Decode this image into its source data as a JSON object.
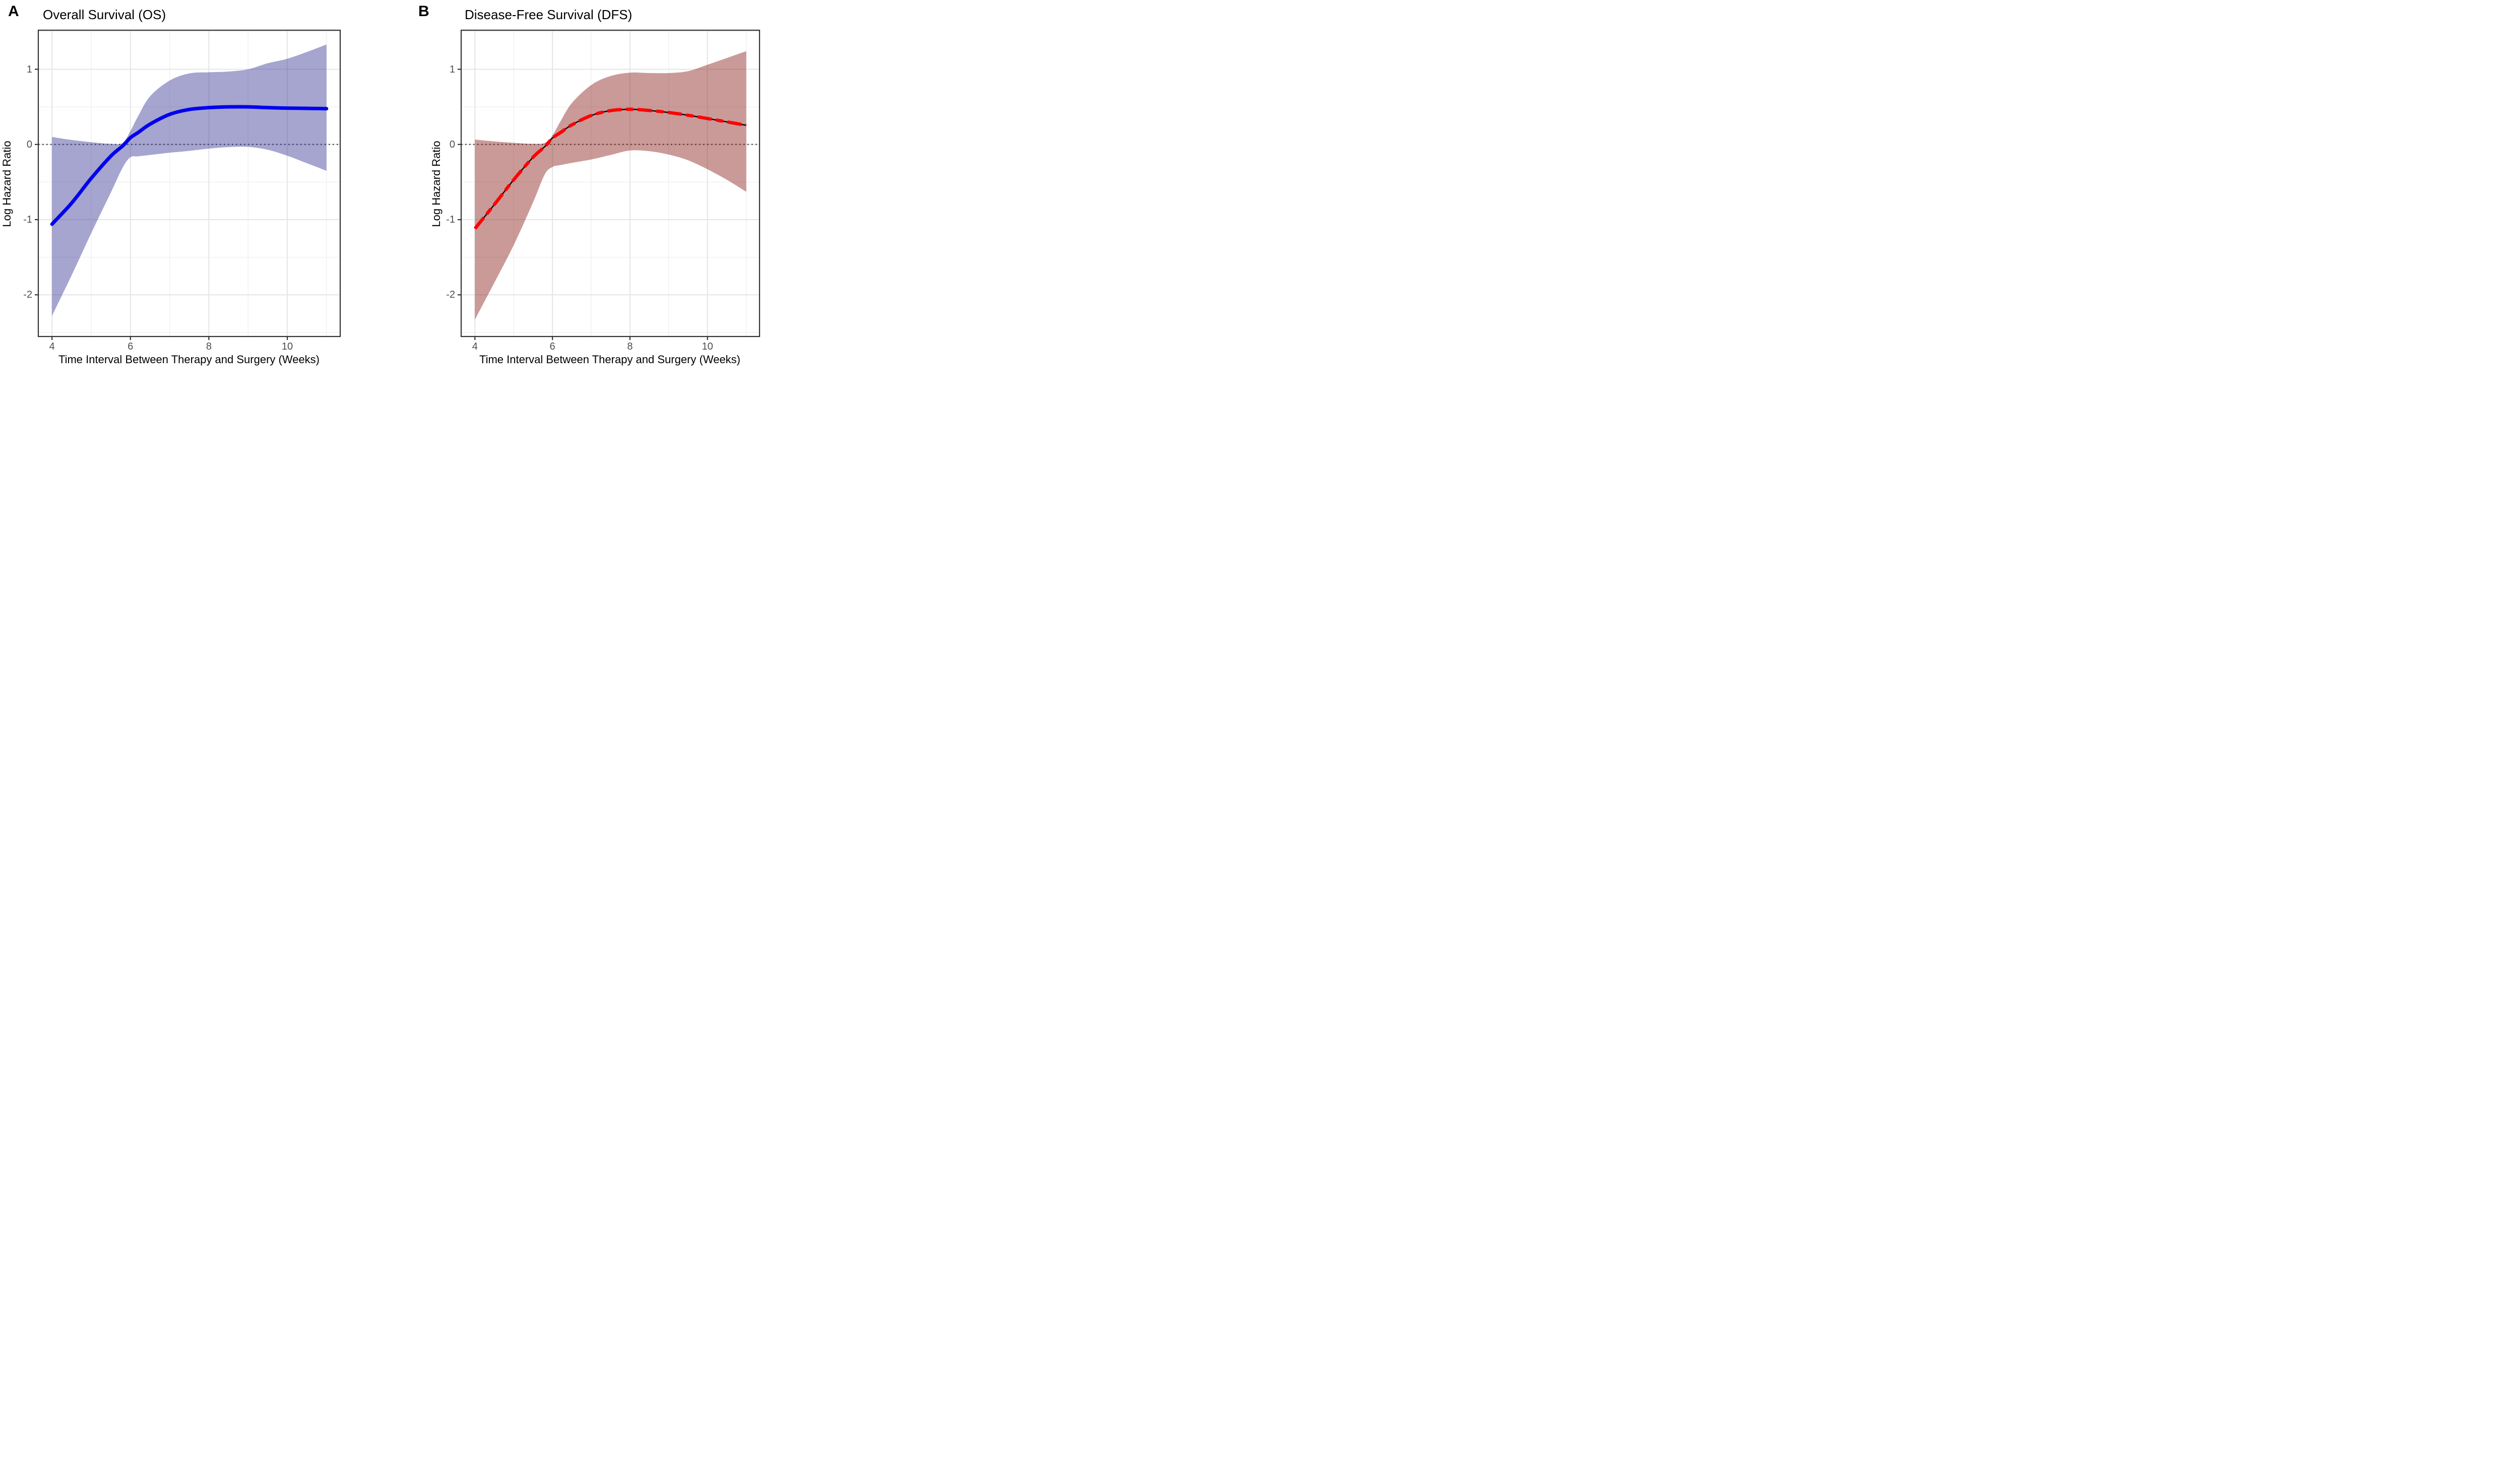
{
  "figure_type": "two-panel spline hazard-ratio figure",
  "chart_data": [
    {
      "panel_label": "A",
      "type": "line",
      "title": "Overall Survival (OS)",
      "xlabel": "Time Interval Between Therapy and Surgery (Weeks)",
      "ylabel": "Log Hazard Ratio",
      "x_ticks": [
        4,
        6,
        8,
        10
      ],
      "y_ticks": [
        1,
        0,
        -1,
        -2
      ],
      "x_minor": [
        5,
        7,
        9,
        11
      ],
      "y_minor": [
        1.5,
        0.5,
        -0.5,
        -1.5,
        -2.5
      ],
      "xlim": [
        3.65,
        11.35
      ],
      "ylim": [
        -2.55,
        1.52
      ],
      "reference_line_y": 0,
      "grid": "on",
      "line_style": "solid",
      "line_color": "#0000EE",
      "band_color": "rgba(55,55,150,0.45)",
      "x": [
        4,
        4.5,
        5,
        5.5,
        5.8,
        6,
        6.2,
        6.5,
        7,
        7.5,
        8,
        8.5,
        9,
        9.5,
        10,
        10.5,
        11
      ],
      "series": [
        {
          "name": "log hazard ratio estimate",
          "values": [
            -1.06,
            -0.78,
            -0.45,
            -0.155,
            -0.02,
            0.09,
            0.16,
            0.27,
            0.4,
            0.465,
            0.49,
            0.5,
            0.5,
            0.49,
            0.483,
            0.48,
            0.476
          ]
        },
        {
          "name": "95% CI lower",
          "values": [
            -2.28,
            -1.74,
            -1.18,
            -0.64,
            -0.31,
            -0.17,
            -0.158,
            -0.14,
            -0.11,
            -0.085,
            -0.055,
            -0.035,
            -0.032,
            -0.07,
            -0.15,
            -0.25,
            -0.35
          ]
        },
        {
          "name": "95% CI upper",
          "values": [
            0.1,
            0.06,
            0.03,
            0.008,
            0.02,
            0.18,
            0.38,
            0.64,
            0.85,
            0.945,
            0.96,
            0.97,
            1.0,
            1.08,
            1.14,
            1.23,
            1.33
          ]
        }
      ]
    },
    {
      "panel_label": "B",
      "type": "line",
      "title": "Disease-Free Survival (DFS)",
      "xlabel": "Time Interval Between Therapy and Surgery (Weeks)",
      "ylabel": "Log Hazard Ratio",
      "x_ticks": [
        4,
        6,
        8,
        10
      ],
      "y_ticks": [
        1,
        0,
        -1,
        -2
      ],
      "x_minor": [
        5,
        7,
        9,
        11
      ],
      "y_minor": [
        1.5,
        0.5,
        -0.5,
        -1.5,
        -2.5
      ],
      "xlim": [
        3.65,
        11.35
      ],
      "ylim": [
        -2.55,
        1.52
      ],
      "reference_line_y": 0,
      "grid": "on",
      "line_style": "dashed",
      "line_color": "#FF0000",
      "line_underlay_color": "#1A0A0A",
      "band_color": "rgba(140,35,32,0.46)",
      "x": [
        4,
        4.5,
        5,
        5.5,
        5.8,
        6,
        6.2,
        6.5,
        7,
        7.5,
        8,
        8.5,
        9,
        9.5,
        10,
        10.5,
        11
      ],
      "series": [
        {
          "name": "log hazard ratio estimate",
          "values": [
            -1.12,
            -0.8,
            -0.47,
            -0.17,
            -0.03,
            0.085,
            0.155,
            0.26,
            0.385,
            0.45,
            0.468,
            0.452,
            0.425,
            0.388,
            0.345,
            0.3,
            0.255
          ]
        },
        {
          "name": "95% CI lower",
          "values": [
            -2.33,
            -1.84,
            -1.34,
            -0.77,
            -0.4,
            -0.3,
            -0.275,
            -0.245,
            -0.2,
            -0.14,
            -0.08,
            -0.09,
            -0.135,
            -0.21,
            -0.33,
            -0.47,
            -0.63
          ]
        },
        {
          "name": "95% CI upper",
          "values": [
            0.065,
            0.04,
            0.022,
            0.008,
            0.02,
            0.12,
            0.3,
            0.55,
            0.79,
            0.91,
            0.955,
            0.95,
            0.95,
            0.975,
            1.06,
            1.15,
            1.24
          ]
        }
      ]
    }
  ],
  "style_colors": {
    "grid_major": "#E5E5E5",
    "grid_minor": "#F0F0F0",
    "panel_border": "#333333",
    "tick_mark": "#333333",
    "tick_text": "#4D4D4D",
    "reference_dotted": "#4D4D4D",
    "background": "#FFFFFF"
  }
}
